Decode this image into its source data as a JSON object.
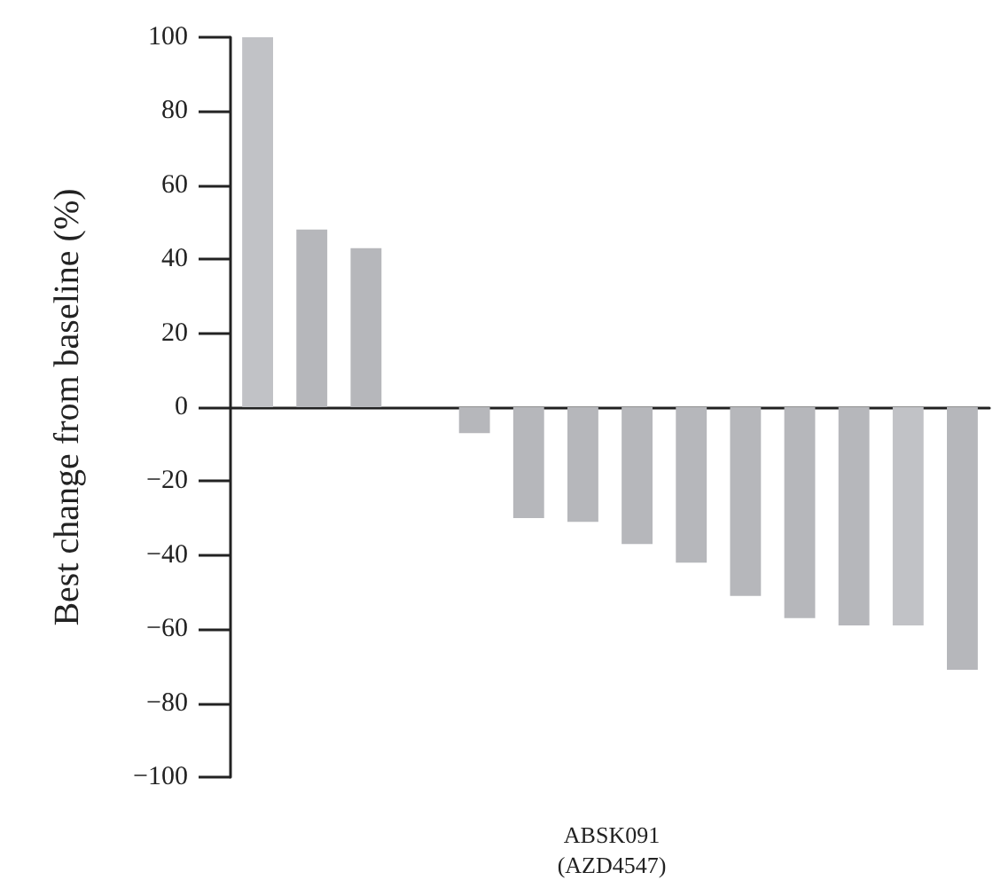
{
  "chart_data": {
    "type": "bar",
    "ylabel": "Best change from baseline (%)",
    "xlabel": "ABSK091\n(AZD4547)",
    "categories": [
      null,
      null,
      null,
      null,
      null,
      null,
      null,
      null,
      null,
      null,
      null,
      null,
      null,
      null
    ],
    "values": [
      100,
      48,
      43,
      null,
      -7,
      -30,
      -31,
      -37,
      -42,
      -51,
      -57,
      -59,
      -59,
      -71
    ],
    "colors": [
      "#c1c2c6",
      "#b6b7bb",
      "#b6b7bb",
      "#b6b7bb",
      "#b6b7bb",
      "#b6b7bb",
      "#b6b7bb",
      "#b6b7bb",
      "#b6b7bb",
      "#b6b7bb",
      "#b6b7bb",
      "#b6b7bb",
      "#c1c2c6",
      "#b6b7bb"
    ],
    "ylim": [
      -100,
      100
    ],
    "yticks": [
      -100,
      -80,
      -60,
      -40,
      -20,
      0,
      20,
      40,
      60,
      80,
      100
    ]
  }
}
